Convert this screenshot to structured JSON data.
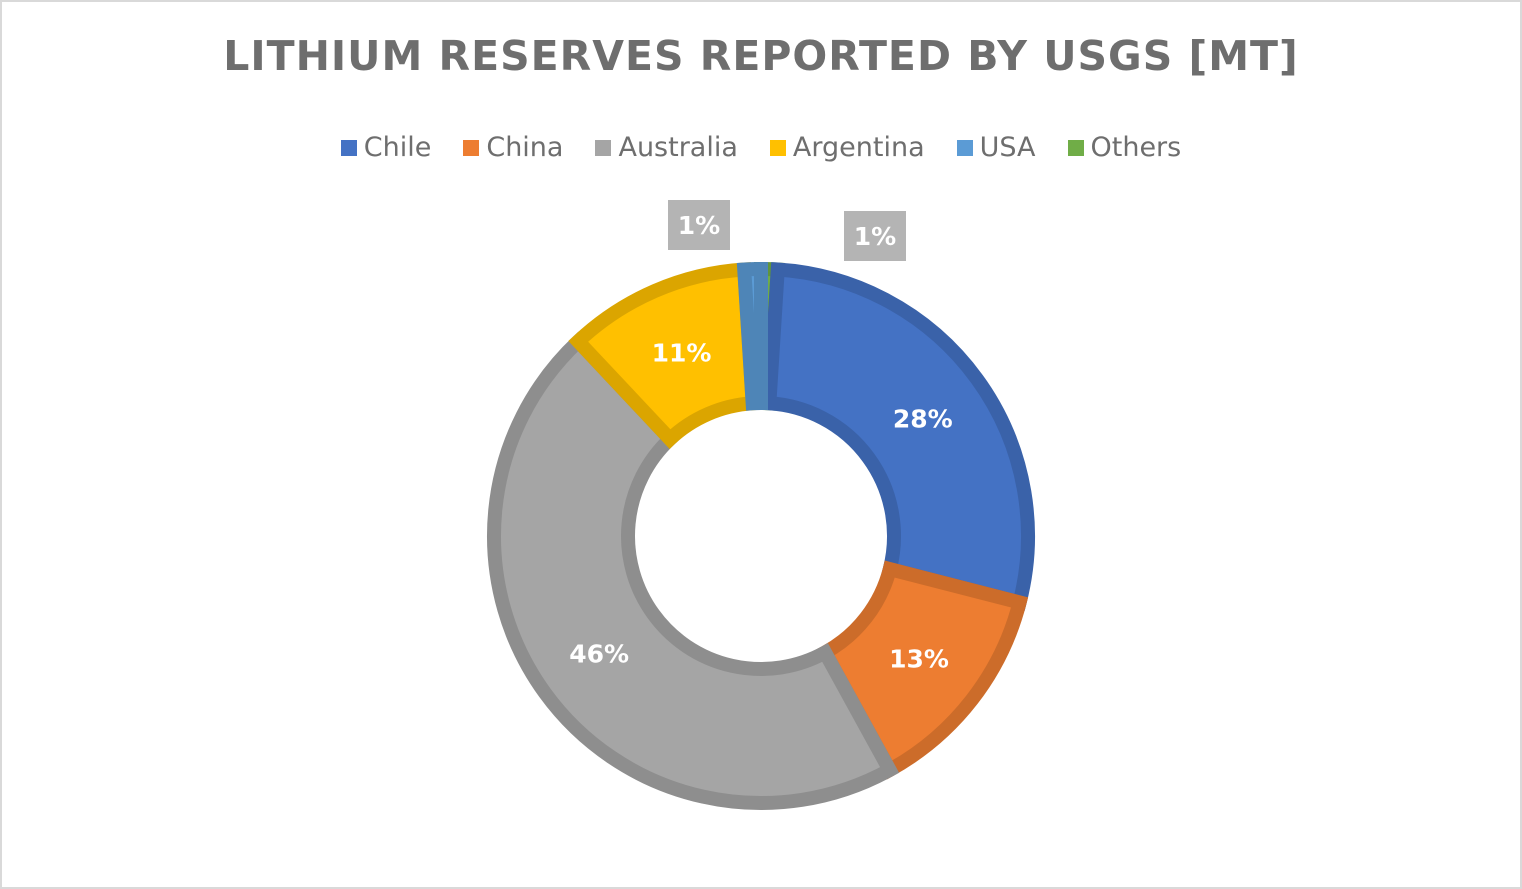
{
  "chart_data": {
    "type": "pie",
    "donut": true,
    "title": "LITHIUM RESERVES REPORTED BY USGS [MT]",
    "legend_position": "top",
    "categories": [
      "Chile",
      "China",
      "Australia",
      "Argentina",
      "USA",
      "Others"
    ],
    "values": [
      28,
      13,
      46,
      11,
      1,
      1
    ],
    "labels": [
      "28%",
      "13%",
      "46%",
      "11%",
      "1%",
      "1%"
    ],
    "colors": [
      "#4472c4",
      "#ed7d31",
      "#a5a5a5",
      "#ffc000",
      "#5b9bd5",
      "#70ad47"
    ],
    "label_colors": [
      "#ffffff",
      "#ffffff",
      "#ffffff",
      "#ffffff",
      "#ffffff",
      "#ffffff"
    ],
    "callout_background": "#b4b4b4"
  }
}
